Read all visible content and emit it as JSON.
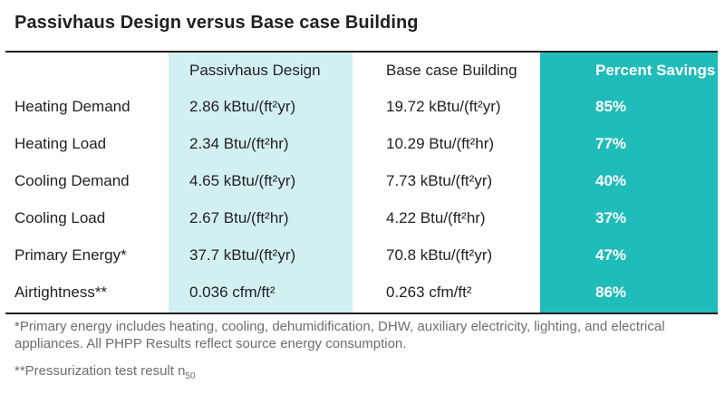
{
  "title": "Passivhaus Design versus Base case Building",
  "columns": [
    "",
    "Passivhaus Design",
    "Base case Building",
    "Percent Savings"
  ],
  "rows": [
    {
      "label": "Heating Demand",
      "passivhaus": "2.86 kBtu/(ft²yr)",
      "base": "19.72 kBtu/(ft²yr)",
      "savings": "85%"
    },
    {
      "label": "Heating Load",
      "passivhaus": "2.34 Btu/(ft²hr)",
      "base": "10.29 Btu/(ft²hr)",
      "savings": "77%"
    },
    {
      "label": "Cooling Demand",
      "passivhaus": "4.65 kBtu/(ft²yr)",
      "base": "7.73 kBtu/(ft²yr)",
      "savings": "40%"
    },
    {
      "label": "Cooling Load",
      "passivhaus": "2.67 Btu/(ft²hr)",
      "base": "4.22 Btu/(ft²hr)",
      "savings": "37%"
    },
    {
      "label": "Primary Energy*",
      "passivhaus": "37.7 kBtu/(ft²yr)",
      "base": "70.8 kBtu/(ft²yr)",
      "savings": "47%"
    },
    {
      "label": "Airtightness**",
      "passivhaus": "0.036 cfm/ft²",
      "base": "0.263 cfm/ft²",
      "savings": "86%"
    }
  ],
  "footnotes": {
    "primary_energy": "*Primary energy includes heating, cooling, dehumidification, DHW, auxiliary electricity, lighting, and electrical appliances. All PHPP Results reflect source energy consumption.",
    "pressurization": "**Pressurization test result n",
    "pressurization_subscript": "50"
  },
  "colors": {
    "passivhaus_column": "#d2f0f1",
    "savings_column": "#20bcba",
    "text": "#231f20",
    "footnote_text": "#6d6e71"
  }
}
